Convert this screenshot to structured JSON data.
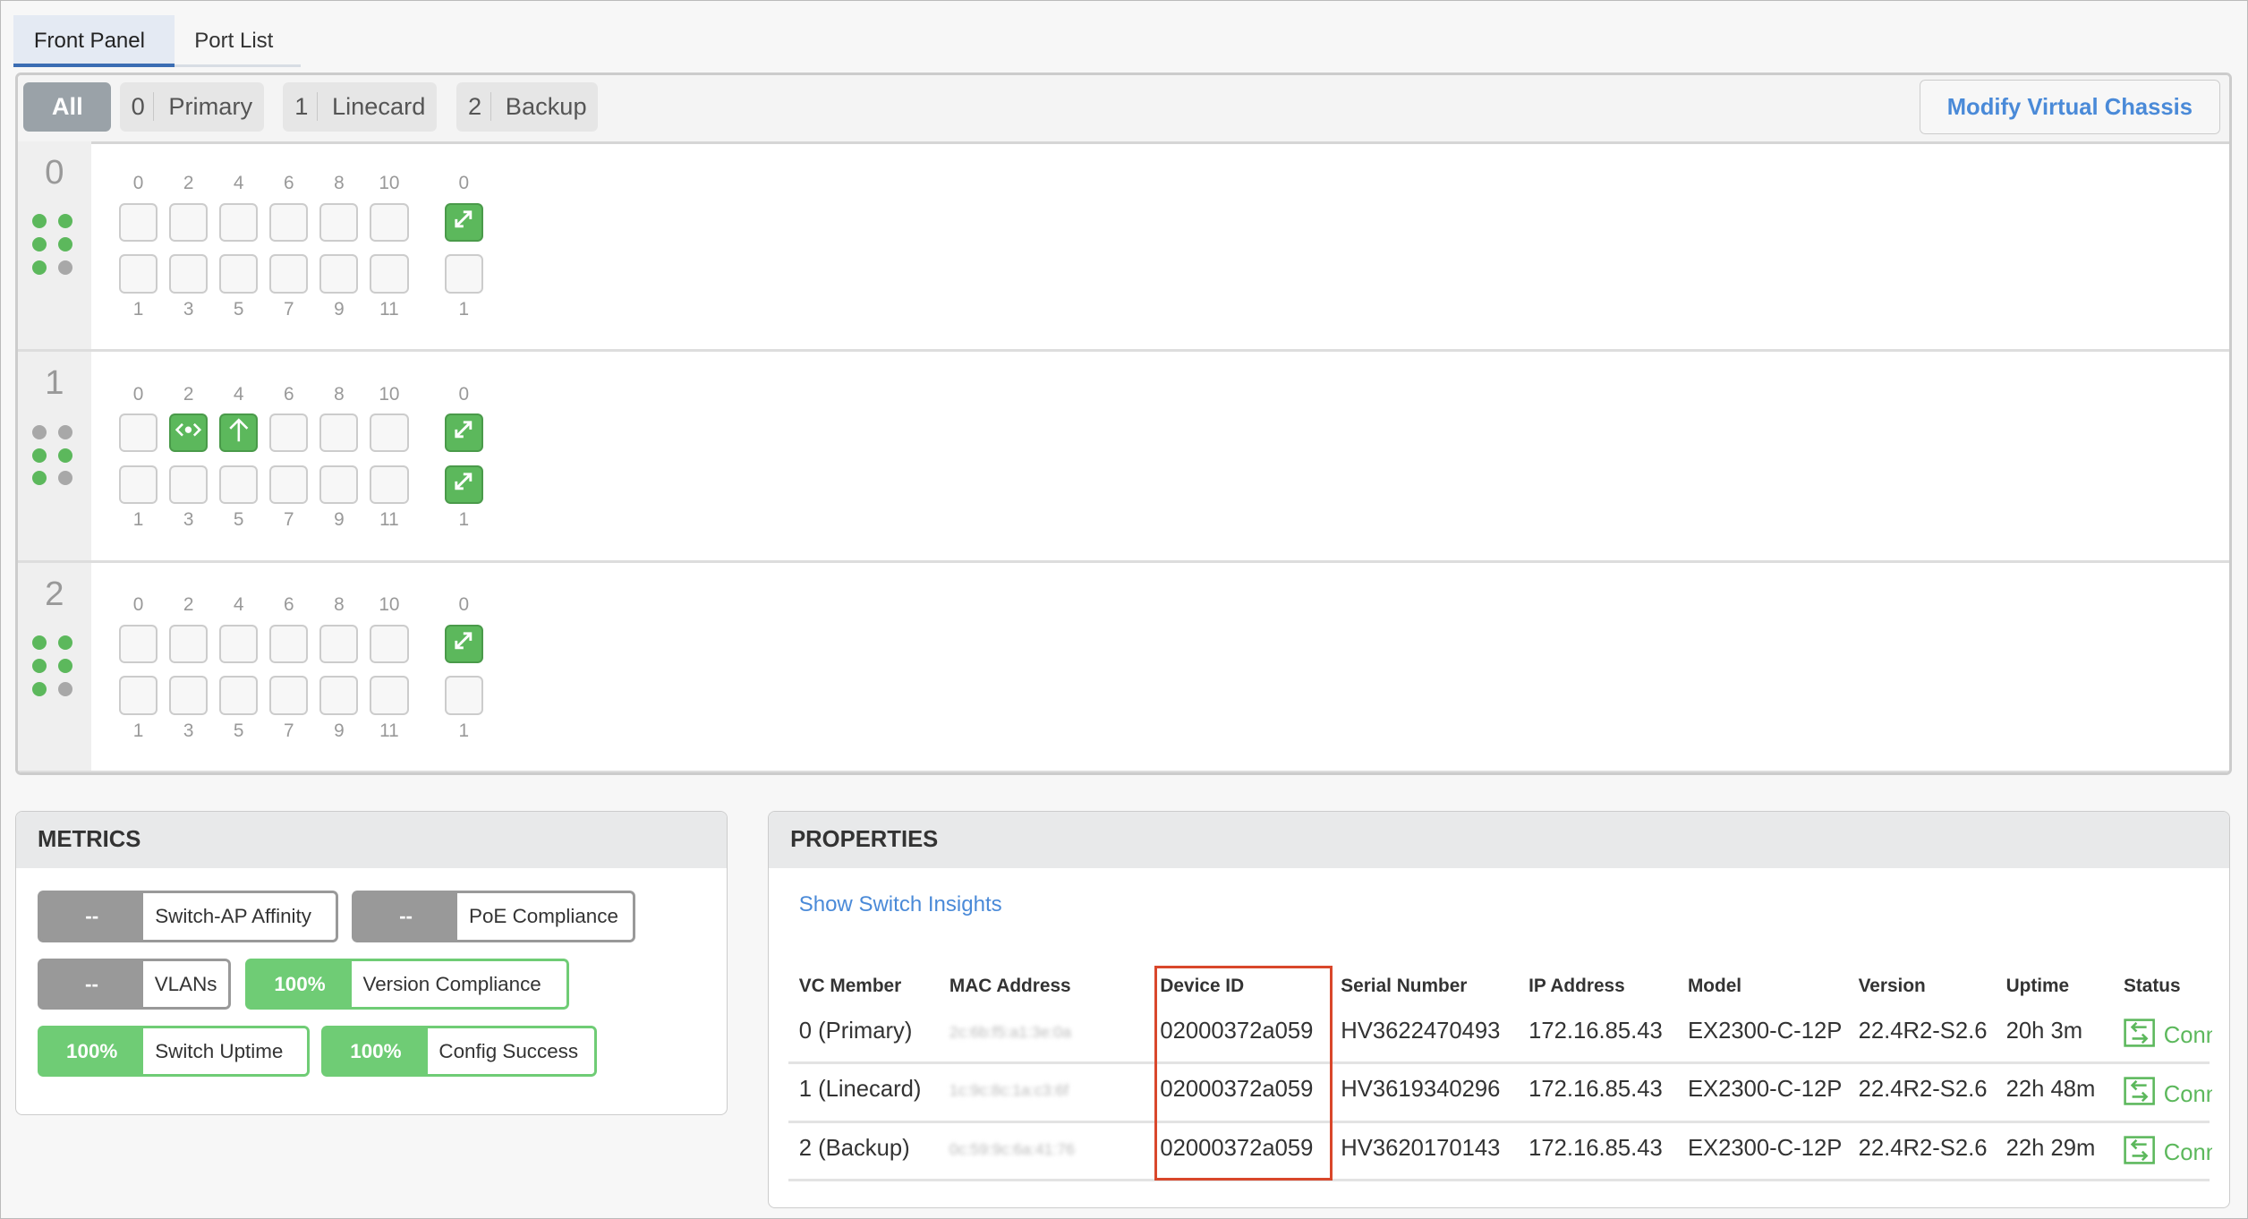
{
  "tabs": [
    {
      "label": "Front Panel",
      "active": true
    },
    {
      "label": "Port List",
      "active": false
    }
  ],
  "filters": {
    "all": "All",
    "members": [
      {
        "num": "0",
        "label": "Primary"
      },
      {
        "num": "1",
        "label": "Linecard"
      },
      {
        "num": "2",
        "label": "Backup"
      }
    ]
  },
  "modify_label": "Modify Virtual Chassis",
  "colors": {
    "green": "#5cb85c",
    "accent": "#4a8ad8",
    "gray": "#9aa2a8",
    "highlight": "#d9472b"
  },
  "port_labels": {
    "top": [
      "0",
      "2",
      "4",
      "6",
      "8",
      "10"
    ],
    "bottom": [
      "1",
      "3",
      "5",
      "7",
      "9",
      "11"
    ],
    "uplink_top": "0",
    "uplink_bottom": "1"
  },
  "members": [
    {
      "num": "0",
      "leds": [
        "green",
        "green",
        "green",
        "green",
        "green",
        "gray"
      ],
      "ports_top": [
        "",
        "",
        "",
        "",
        "",
        ""
      ],
      "ports_bottom": [
        "",
        "",
        "",
        "",
        "",
        ""
      ],
      "uplink_top": "uplink",
      "uplink_bottom": ""
    },
    {
      "num": "1",
      "leds": [
        "gray",
        "gray",
        "green",
        "green",
        "green",
        "gray"
      ],
      "ports_top": [
        "",
        "trunk",
        "uplink-arrow",
        "",
        "",
        ""
      ],
      "ports_bottom": [
        "",
        "",
        "",
        "",
        "",
        ""
      ],
      "uplink_top": "uplink",
      "uplink_bottom": "uplink"
    },
    {
      "num": "2",
      "leds": [
        "green",
        "green",
        "green",
        "green",
        "green",
        "gray"
      ],
      "ports_top": [
        "",
        "",
        "",
        "",
        "",
        ""
      ],
      "ports_bottom": [
        "",
        "",
        "",
        "",
        "",
        ""
      ],
      "uplink_top": "uplink",
      "uplink_bottom": ""
    }
  ],
  "metrics": {
    "title": "METRICS",
    "items": [
      {
        "value": "--",
        "label": "Switch-AP Affinity",
        "status": "none"
      },
      {
        "value": "--",
        "label": "PoE Compliance",
        "status": "none"
      },
      {
        "value": "--",
        "label": "VLANs",
        "status": "none"
      },
      {
        "value": "100%",
        "label": "Version Compliance",
        "status": "good"
      },
      {
        "value": "100%",
        "label": "Switch Uptime",
        "status": "good"
      },
      {
        "value": "100%",
        "label": "Config Success",
        "status": "good"
      }
    ]
  },
  "properties": {
    "title": "PROPERTIES",
    "link": "Show Switch Insights",
    "columns": [
      "VC Member",
      "MAC Address",
      "Device ID",
      "Serial Number",
      "IP Address",
      "Model",
      "Version",
      "Uptime",
      "Status"
    ],
    "rows": [
      {
        "member": "0 (Primary)",
        "mac": "2c:6b:f5:a1:3e:0a",
        "device_id": "02000372a059",
        "serial": "HV3622470493",
        "ip": "172.16.85.43",
        "model": "EX2300-C-12P",
        "version": "22.4R2-S2.6",
        "uptime": "20h 3m",
        "status": "Connected"
      },
      {
        "member": "1 (Linecard)",
        "mac": "1c:9c:8c:1a:c3:6f",
        "device_id": "02000372a059",
        "serial": "HV3619340296",
        "ip": "172.16.85.43",
        "model": "EX2300-C-12P",
        "version": "22.4R2-S2.6",
        "uptime": "22h 48m",
        "status": "Connected"
      },
      {
        "member": "2 (Backup)",
        "mac": "0c:59:9c:6a:41:76",
        "device_id": "02000372a059",
        "serial": "HV3620170143",
        "ip": "172.16.85.43",
        "model": "EX2300-C-12P",
        "version": "22.4R2-S2.6",
        "uptime": "22h 29m",
        "status": "Connected"
      }
    ]
  }
}
